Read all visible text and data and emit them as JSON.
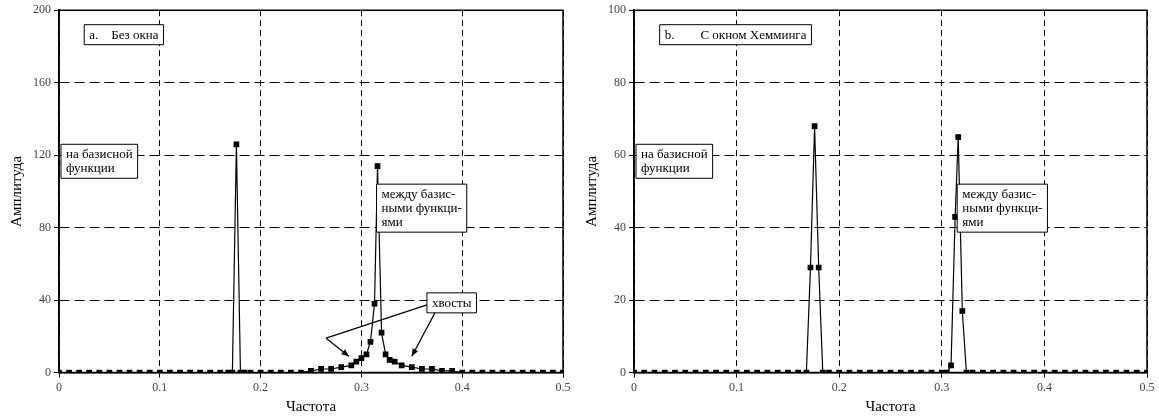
{
  "chart_data": [
    {
      "type": "line",
      "xlabel": "Частота",
      "ylabel": "Амплитуда",
      "marker": "square",
      "grid": true,
      "line_style": "solid",
      "xlim": [
        0,
        0.5
      ],
      "xticks": [
        0,
        0.1,
        0.2,
        0.3,
        0.4,
        0.5
      ],
      "ylim": [
        0,
        200
      ],
      "yticks": [
        0,
        40,
        80,
        120,
        160,
        200
      ],
      "annotations": [
        "a.    Без окна",
        "на базисной\nфункции",
        "между базис-\nными функци-\nями",
        "хвосты"
      ],
      "series": [
        {
          "color": "#000000",
          "x": [
            0,
            0.01,
            0.02,
            0.03,
            0.04,
            0.05,
            0.06,
            0.07,
            0.08,
            0.09,
            0.1,
            0.11,
            0.12,
            0.13,
            0.14,
            0.15,
            0.16,
            0.168,
            0.172,
            0.176,
            0.18,
            0.184,
            0.19,
            0.2,
            0.21,
            0.22,
            0.23,
            0.24,
            0.25,
            0.26,
            0.27,
            0.28,
            0.29,
            0.295,
            0.3,
            0.305,
            0.309,
            0.313,
            0.316,
            0.32,
            0.324,
            0.328,
            0.333,
            0.34,
            0.35,
            0.36,
            0.37,
            0.38,
            0.39,
            0.4,
            0.41,
            0.42,
            0.43,
            0.44,
            0.45,
            0.46,
            0.47,
            0.48,
            0.49,
            0.5
          ],
          "values": [
            0,
            0,
            0,
            0,
            0,
            0,
            0,
            0,
            0,
            0,
            0,
            0,
            0,
            0,
            0,
            0,
            0,
            0,
            0,
            126,
            0,
            0,
            0,
            0,
            0,
            0,
            0,
            0,
            1,
            2,
            2,
            3,
            4,
            6,
            8,
            10,
            17,
            38,
            114,
            22,
            10,
            7,
            6,
            4,
            3,
            2,
            2,
            1,
            1,
            0,
            0,
            0,
            0,
            0,
            0,
            0,
            0,
            0,
            0,
            0
          ]
        }
      ]
    },
    {
      "type": "line",
      "xlabel": "Частота",
      "ylabel": "Амплитуда",
      "marker": "square",
      "grid": true,
      "line_style": "solid",
      "xlim": [
        0,
        0.5
      ],
      "xticks": [
        0,
        0.1,
        0.2,
        0.3,
        0.4,
        0.5
      ],
      "ylim": [
        0,
        100
      ],
      "yticks": [
        0,
        20,
        40,
        60,
        80,
        100
      ],
      "annotations": [
        "b.        С окном Хемминга",
        "на базисной\nфункции",
        "между базис-\nными функци-\nями"
      ],
      "series": [
        {
          "color": "#000000",
          "x": [
            0,
            0.01,
            0.02,
            0.03,
            0.04,
            0.05,
            0.06,
            0.07,
            0.08,
            0.09,
            0.1,
            0.11,
            0.12,
            0.13,
            0.14,
            0.15,
            0.16,
            0.168,
            0.172,
            0.176,
            0.18,
            0.184,
            0.19,
            0.2,
            0.21,
            0.22,
            0.23,
            0.24,
            0.25,
            0.26,
            0.27,
            0.28,
            0.29,
            0.3,
            0.305,
            0.309,
            0.313,
            0.316,
            0.32,
            0.324,
            0.33,
            0.34,
            0.35,
            0.36,
            0.37,
            0.38,
            0.39,
            0.4,
            0.41,
            0.42,
            0.43,
            0.44,
            0.45,
            0.46,
            0.47,
            0.48,
            0.49,
            0.5
          ],
          "values": [
            0,
            0,
            0,
            0,
            0,
            0,
            0,
            0,
            0,
            0,
            0,
            0,
            0,
            0,
            0,
            0,
            0,
            0,
            29,
            68,
            29,
            0,
            0,
            0,
            0,
            0,
            0,
            0,
            0,
            0,
            0,
            0,
            0,
            0,
            0,
            2,
            43,
            65,
            17,
            0,
            0,
            0,
            0,
            0,
            0,
            0,
            0,
            0,
            0,
            0,
            0,
            0,
            0,
            0,
            0,
            0,
            0,
            0
          ]
        }
      ]
    }
  ]
}
